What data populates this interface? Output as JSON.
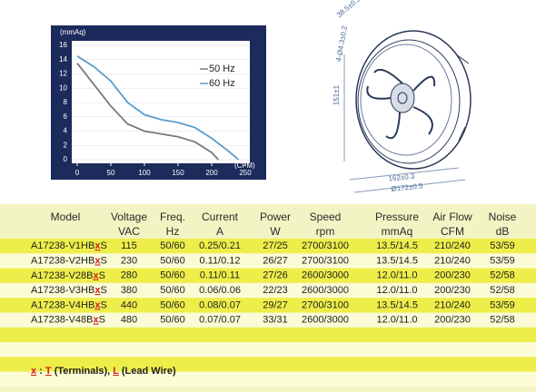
{
  "chart_data": {
    "type": "line",
    "y_label": "(mmAq)",
    "x_label": "(CFM)",
    "xlim": [
      0,
      250
    ],
    "ylim": [
      0,
      16
    ],
    "xticks": [
      0,
      50,
      100,
      150,
      200,
      250
    ],
    "yticks": [
      0,
      2,
      4,
      6,
      8,
      10,
      12,
      14,
      16
    ],
    "series": [
      {
        "name": "50 Hz",
        "color": "#7a7a7a",
        "x": [
          0,
          25,
          50,
          75,
          100,
          125,
          150,
          175,
          200,
          210
        ],
        "values": [
          13.5,
          10.5,
          7.5,
          5,
          4,
          3.6,
          3.2,
          2.5,
          1,
          0
        ]
      },
      {
        "name": "60 Hz",
        "color": "#5a9ccc",
        "x": [
          0,
          25,
          50,
          75,
          100,
          125,
          150,
          175,
          200,
          225,
          240
        ],
        "values": [
          14.5,
          13,
          11,
          8,
          6.3,
          5.6,
          5.2,
          4.5,
          3,
          1.2,
          0
        ]
      }
    ]
  },
  "drawing": {
    "depth": "38.5±0.5",
    "holes": "4-Ø4.3±0.2",
    "height": "151±1",
    "width": "162±0.3",
    "diameter": "Ø172±0.5"
  },
  "table": {
    "header": [
      {
        "line1": "Model"
      },
      {
        "line1": "Voltage",
        "line2": "VAC"
      },
      {
        "line1": "Freq.",
        "line2": "Hz"
      },
      {
        "line1": "Current",
        "line2": "A"
      },
      {
        "line1": "Power",
        "line2": "W"
      },
      {
        "line1": "Speed",
        "line2": "rpm"
      },
      {
        "line1": "Pressure",
        "line2": "mmAq"
      },
      {
        "line1": "Air Flow",
        "line2": "CFM"
      },
      {
        "line1": "Noise",
        "line2": "dB"
      }
    ],
    "rows": [
      {
        "model": [
          "A17238-V1HB",
          "x",
          "S"
        ],
        "cells": [
          "115",
          "50/60",
          "0.25/0.21",
          "27/25",
          "2700/3100",
          "13.5/14.5",
          "210/240",
          "53/59"
        ]
      },
      {
        "model": [
          "A17238-V2HB",
          "x",
          "S"
        ],
        "cells": [
          "230",
          "50/60",
          "0.11/0.12",
          "26/27",
          "2700/3100",
          "13.5/14.5",
          "210/240",
          "53/59"
        ]
      },
      {
        "model": [
          "A17238-V28B",
          "x",
          "S"
        ],
        "cells": [
          "280",
          "50/60",
          "0.11/0.11",
          "27/26",
          "2600/3000",
          "12.0/11.0",
          "200/230",
          "52/58"
        ]
      },
      {
        "model": [
          "A17238-V3HB",
          "x",
          "S"
        ],
        "cells": [
          "380",
          "50/60",
          "0.06/0.06",
          "22/23",
          "2600/3000",
          "12.0/11.0",
          "200/230",
          "52/58"
        ]
      },
      {
        "model": [
          "A17238-V4HB",
          "x",
          "S"
        ],
        "cells": [
          "440",
          "50/60",
          "0.08/0.07",
          "29/27",
          "2700/3100",
          "13.5/14.5",
          "210/240",
          "53/59"
        ]
      },
      {
        "model": [
          "A17238-V48B",
          "x",
          "S"
        ],
        "cells": [
          "480",
          "50/60",
          "0.07/0.07",
          "33/31",
          "2600/3000",
          "12.0/11.0",
          "200/230",
          "52/58"
        ]
      }
    ]
  },
  "footnote": [
    "x",
    " : ",
    "T",
    " (Terminals), ",
    "L",
    " (Lead Wire)"
  ]
}
